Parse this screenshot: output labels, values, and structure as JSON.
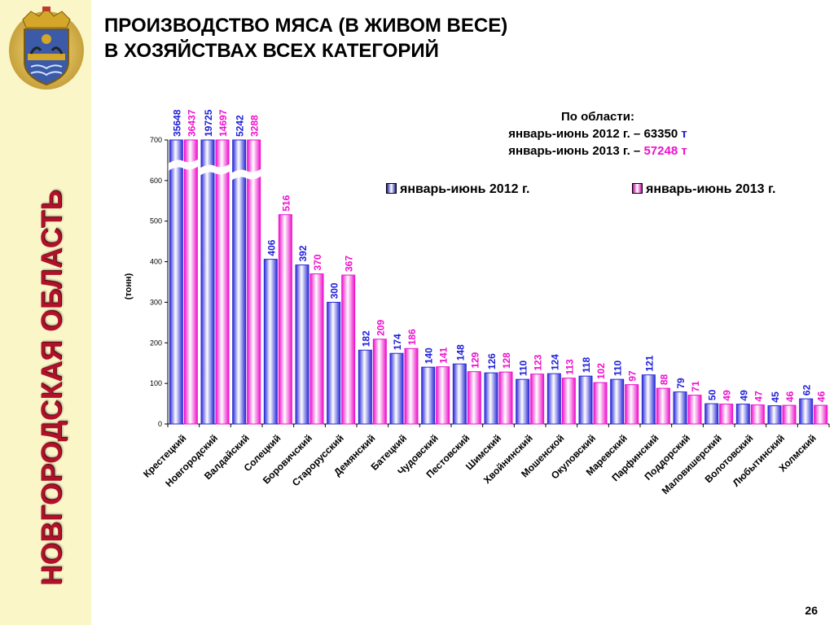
{
  "sidebar": {
    "vertical_title": "НОВГОРОДСКАЯ ОБЛАСТЬ",
    "emblem": "coat-of-arms-icon",
    "background_color": "#fbf6c8",
    "title_color": "#b0102a"
  },
  "header": {
    "title_line1": "ПРОИЗВОДСТВО МЯСА (В ЖИВОМ ВЕСЕ)",
    "title_line2": "В ХОЗЯЙСТВАХ ВСЕХ КАТЕГОРИЙ"
  },
  "summary": {
    "heading": "По области:",
    "line1_text": "январь-июнь 2012 г. – 63350",
    "line1_unit": "т",
    "line2_prefix": "январь-июнь 2013 г. –",
    "line2_value": "57248",
    "line2_unit": "т"
  },
  "page_number": "26",
  "chart_data": {
    "type": "bar",
    "ylabel": "(тонн)",
    "ylim": [
      0,
      700
    ],
    "yticks": [
      0,
      100,
      200,
      300,
      400,
      500,
      600,
      700
    ],
    "axis_break": true,
    "grid": false,
    "legend_position": "top-right",
    "categories": [
      "Крестецкий",
      "Новгородский",
      "Валдайский",
      "Солецкий",
      "Боровичский",
      "Старорусский",
      "Демянский",
      "Батецкий",
      "Чудовский",
      "Пестовский",
      "Шимский",
      "Хвойнинский",
      "Мошенской",
      "Окуловский",
      "Маревский",
      "Парфинский",
      "Поддорский",
      "Маловишерский",
      "Волотовский",
      "Любытинский",
      "Холмский"
    ],
    "series": [
      {
        "name": "январь-июнь 2012 г.",
        "color": "#2a2ad8",
        "label_color": "#1e1ed8",
        "values": [
          35648,
          19725,
          5242,
          406,
          392,
          300,
          182,
          174,
          140,
          148,
          126,
          110,
          124,
          118,
          110,
          121,
          79,
          50,
          49,
          45,
          62
        ]
      },
      {
        "name": "январь-июнь 2013 г.",
        "color": "#ee11cc",
        "label_color": "#ee11cc",
        "values": [
          36437,
          14697,
          3288,
          516,
          370,
          367,
          209,
          186,
          141,
          129,
          128,
          123,
          113,
          102,
          97,
          88,
          71,
          49,
          47,
          46,
          46
        ]
      }
    ]
  }
}
